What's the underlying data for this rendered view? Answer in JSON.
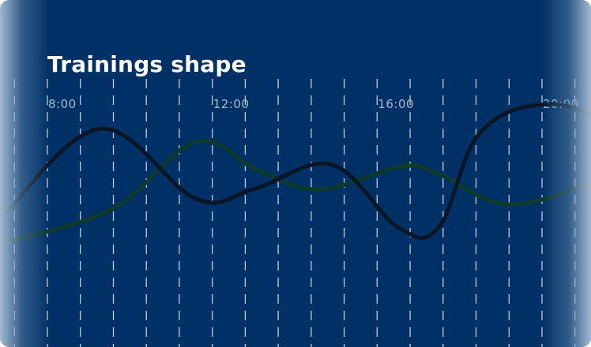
{
  "title": "Trainings shape",
  "colors": {
    "background": "#003166",
    "grid": "#ffffff",
    "series_dark": "#0a1526",
    "series_green": "#0e3a2a",
    "tick_label": "#a9b8cc",
    "title": "#ffffff"
  },
  "chart_data": {
    "type": "line",
    "title": "Trainings shape",
    "xlabel": "",
    "ylabel": "",
    "x_ticks": [
      {
        "hour": 8,
        "label": "8:00"
      },
      {
        "hour": 12,
        "label": "12:00"
      },
      {
        "hour": 16,
        "label": "16:00"
      },
      {
        "hour": 20,
        "label": "20:00"
      }
    ],
    "xlim": [
      7,
      22
    ],
    "ylim": [
      0,
      100
    ],
    "grid_interval_hours": 0.8,
    "grid": true,
    "legend": false,
    "series": [
      {
        "color": "#0a1526",
        "x": [
          7.0,
          9.3,
          11.6,
          13.0,
          14.9,
          16.5,
          17.5,
          18.5,
          20.2,
          22.0
        ],
        "y": [
          38,
          82,
          45,
          50,
          63,
          30,
          30,
          80,
          95,
          82
        ]
      },
      {
        "color": "#0e3a2a",
        "x": [
          7.0,
          9.6,
          11.6,
          13.1,
          14.6,
          16.6,
          17.5,
          19.3,
          22.0
        ],
        "y": [
          22,
          40,
          75,
          60,
          50,
          62,
          58,
          42,
          60
        ]
      }
    ]
  }
}
